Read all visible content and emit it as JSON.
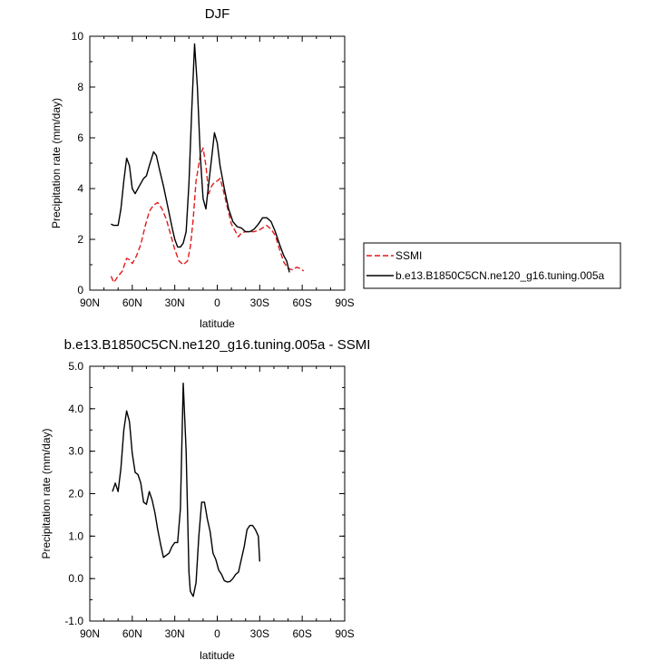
{
  "chart_data": [
    {
      "type": "line",
      "title": "DJF",
      "xlabel": "latitude",
      "ylabel": "Precipitation rate (mm/day)",
      "xlim": [
        90,
        -90
      ],
      "ylim": [
        0,
        10
      ],
      "x_ticks": [
        90,
        60,
        30,
        0,
        -30,
        -60,
        -90
      ],
      "x_tick_labels": [
        "90N",
        "60N",
        "30N",
        "0",
        "30S",
        "60S",
        "90S"
      ],
      "y_ticks": [
        0,
        2,
        4,
        6,
        8,
        10
      ],
      "y_tick_labels": [
        "0",
        "2",
        "4",
        "6",
        "8",
        "10"
      ],
      "legend_position": "right",
      "series": [
        {
          "name": "SSMI",
          "color": "#e41a1c",
          "dash": true,
          "points": [
            [
              75,
              0.55
            ],
            [
              73,
              0.3
            ],
            [
              70,
              0.55
            ],
            [
              67,
              0.75
            ],
            [
              64,
              1.25
            ],
            [
              62,
              1.2
            ],
            [
              60,
              1.05
            ],
            [
              57,
              1.35
            ],
            [
              54,
              1.8
            ],
            [
              51,
              2.5
            ],
            [
              48,
              3.1
            ],
            [
              45,
              3.35
            ],
            [
              42,
              3.45
            ],
            [
              39,
              3.2
            ],
            [
              36,
              2.8
            ],
            [
              33,
              2.2
            ],
            [
              30,
              1.6
            ],
            [
              27,
              1.15
            ],
            [
              24,
              1.0
            ],
            [
              21,
              1.15
            ],
            [
              19,
              1.7
            ],
            [
              17,
              2.8
            ],
            [
              15,
              4.3
            ],
            [
              12,
              5.3
            ],
            [
              10,
              5.6
            ],
            [
              8,
              4.9
            ],
            [
              6,
              3.8
            ],
            [
              4,
              4.1
            ],
            [
              2,
              4.25
            ],
            [
              0,
              4.3
            ],
            [
              -2,
              4.4
            ],
            [
              -4,
              4.0
            ],
            [
              -7,
              3.3
            ],
            [
              -10,
              2.6
            ],
            [
              -13,
              2.3
            ],
            [
              -15,
              2.1
            ],
            [
              -17,
              2.25
            ],
            [
              -20,
              2.3
            ],
            [
              -23,
              2.3
            ],
            [
              -26,
              2.3
            ],
            [
              -29,
              2.35
            ],
            [
              -32,
              2.45
            ],
            [
              -35,
              2.55
            ],
            [
              -38,
              2.4
            ],
            [
              -41,
              2.15
            ],
            [
              -44,
              1.6
            ],
            [
              -47,
              1.1
            ],
            [
              -50,
              0.85
            ],
            [
              -53,
              0.8
            ],
            [
              -56,
              0.9
            ],
            [
              -59,
              0.85
            ],
            [
              -61,
              0.75
            ]
          ]
        },
        {
          "name": "b.e13.B1850C5CN.ne120_g16.tuning.005a",
          "color": "#000000",
          "dash": false,
          "points": [
            [
              75,
              2.6
            ],
            [
              73,
              2.55
            ],
            [
              70,
              2.55
            ],
            [
              68,
              3.2
            ],
            [
              66,
              4.3
            ],
            [
              64,
              5.2
            ],
            [
              62,
              4.9
            ],
            [
              60,
              4.0
            ],
            [
              58,
              3.8
            ],
            [
              55,
              4.1
            ],
            [
              52,
              4.4
            ],
            [
              50,
              4.5
            ],
            [
              48,
              4.9
            ],
            [
              45,
              5.45
            ],
            [
              43,
              5.3
            ],
            [
              41,
              4.8
            ],
            [
              38,
              4.1
            ],
            [
              35,
              3.3
            ],
            [
              32,
              2.5
            ],
            [
              30,
              2.0
            ],
            [
              28,
              1.7
            ],
            [
              26,
              1.7
            ],
            [
              24,
              1.85
            ],
            [
              22,
              2.3
            ],
            [
              20,
              4.2
            ],
            [
              18,
              7.1
            ],
            [
              16,
              9.7
            ],
            [
              14,
              8.0
            ],
            [
              12,
              5.3
            ],
            [
              10,
              3.6
            ],
            [
              8,
              3.2
            ],
            [
              6,
              4.2
            ],
            [
              4,
              5.2
            ],
            [
              2,
              6.2
            ],
            [
              0,
              5.8
            ],
            [
              -2,
              4.9
            ],
            [
              -5,
              4.0
            ],
            [
              -8,
              3.2
            ],
            [
              -11,
              2.7
            ],
            [
              -14,
              2.5
            ],
            [
              -17,
              2.45
            ],
            [
              -20,
              2.3
            ],
            [
              -23,
              2.3
            ],
            [
              -26,
              2.4
            ],
            [
              -29,
              2.6
            ],
            [
              -32,
              2.85
            ],
            [
              -35,
              2.85
            ],
            [
              -38,
              2.7
            ],
            [
              -41,
              2.3
            ],
            [
              -44,
              1.8
            ],
            [
              -47,
              1.35
            ],
            [
              -49,
              1.15
            ],
            [
              -51,
              0.7
            ]
          ]
        }
      ]
    },
    {
      "type": "line",
      "title": "b.e13.B1850C5CN.ne120_g16.tuning.005a - SSMI",
      "xlabel": "latitude",
      "ylabel": "Precipitation rate (mm/day)",
      "xlim": [
        90,
        -90
      ],
      "ylim": [
        -1.0,
        5.0
      ],
      "x_ticks": [
        90,
        60,
        30,
        0,
        -30,
        -60,
        -90
      ],
      "x_tick_labels": [
        "90N",
        "60N",
        "30N",
        "0",
        "30S",
        "60S",
        "90S"
      ],
      "y_ticks": [
        -1.0,
        0.0,
        1.0,
        2.0,
        3.0,
        4.0,
        5.0
      ],
      "y_tick_labels": [
        "-1.0",
        "0.0",
        "1.0",
        "2.0",
        "3.0",
        "4.0",
        "5.0"
      ],
      "series": [
        {
          "name": "b.e13.B1850C5CN.ne120_g16.tuning.005a - SSMI",
          "color": "#000000",
          "dash": false,
          "points": [
            [
              74,
              2.05
            ],
            [
              72,
              2.25
            ],
            [
              70,
              2.05
            ],
            [
              68,
              2.6
            ],
            [
              66,
              3.5
            ],
            [
              64,
              3.95
            ],
            [
              62,
              3.7
            ],
            [
              60,
              2.95
            ],
            [
              58,
              2.5
            ],
            [
              56,
              2.45
            ],
            [
              54,
              2.25
            ],
            [
              52,
              1.8
            ],
            [
              50,
              1.75
            ],
            [
              48,
              2.05
            ],
            [
              46,
              1.85
            ],
            [
              44,
              1.55
            ],
            [
              42,
              1.15
            ],
            [
              40,
              0.8
            ],
            [
              38,
              0.5
            ],
            [
              36,
              0.55
            ],
            [
              34,
              0.6
            ],
            [
              32,
              0.75
            ],
            [
              30,
              0.85
            ],
            [
              28,
              0.85
            ],
            [
              26,
              1.65
            ],
            [
              24,
              4.6
            ],
            [
              22,
              3.0
            ],
            [
              20,
              0.15
            ],
            [
              19,
              -0.3
            ],
            [
              17,
              -0.42
            ],
            [
              15,
              -0.1
            ],
            [
              13,
              1.0
            ],
            [
              11,
              1.8
            ],
            [
              9,
              1.8
            ],
            [
              7,
              1.4
            ],
            [
              5,
              1.1
            ],
            [
              3,
              0.6
            ],
            [
              1,
              0.45
            ],
            [
              -1,
              0.2
            ],
            [
              -3,
              0.1
            ],
            [
              -5,
              -0.05
            ],
            [
              -7,
              -0.08
            ],
            [
              -9,
              -0.07
            ],
            [
              -11,
              0.0
            ],
            [
              -13,
              0.1
            ],
            [
              -15,
              0.15
            ],
            [
              -17,
              0.45
            ],
            [
              -19,
              0.75
            ],
            [
              -21,
              1.15
            ],
            [
              -23,
              1.25
            ],
            [
              -25,
              1.25
            ],
            [
              -27,
              1.15
            ],
            [
              -29,
              1.0
            ],
            [
              -30,
              0.4
            ]
          ]
        }
      ]
    }
  ],
  "legend": {
    "items": [
      {
        "label": "SSMI",
        "color": "#e41a1c",
        "dash": true
      },
      {
        "label": "b.e13.B1850C5CN.ne120_g16.tuning.005a",
        "color": "#000000",
        "dash": false
      }
    ]
  }
}
